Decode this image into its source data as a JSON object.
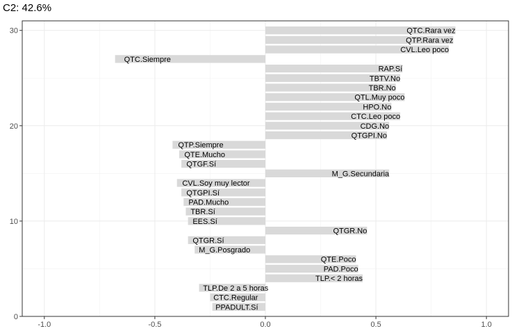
{
  "chart_data": {
    "type": "bar",
    "orientation": "horizontal",
    "title": "C2: 42.6%",
    "xlabel": "",
    "ylabel": "",
    "xlim": [
      -1.1,
      1.1
    ],
    "ylim": [
      0,
      31
    ],
    "x_ticks": [
      -1.0,
      -0.5,
      0.0,
      0.5,
      1.0
    ],
    "x_tick_labels": [
      "-1.0",
      "-0.5",
      "0.0",
      "0.5",
      "1.0"
    ],
    "y_ticks": [
      0,
      10,
      20,
      30
    ],
    "y_tick_labels": [
      "0",
      "10",
      "20",
      "30"
    ],
    "grid": true,
    "bar_color": "#d9d9d9",
    "bars": [
      {
        "position": 30,
        "value": 0.86,
        "label": "QTC.Rara vez"
      },
      {
        "position": 29,
        "value": 0.85,
        "label": "QTP.Rara vez"
      },
      {
        "position": 28,
        "value": 0.83,
        "label": "CVL.Leo poco"
      },
      {
        "position": 27,
        "value": -0.68,
        "label": "QTC.Siempre"
      },
      {
        "position": 26,
        "value": 0.62,
        "label": "RAP.Sí"
      },
      {
        "position": 25,
        "value": 0.61,
        "label": "TBTV.No"
      },
      {
        "position": 24,
        "value": 0.59,
        "label": "TBR.No"
      },
      {
        "position": 23,
        "value": 0.63,
        "label": "QTL.Muy poco"
      },
      {
        "position": 22,
        "value": 0.57,
        "label": "HPO.No"
      },
      {
        "position": 21,
        "value": 0.61,
        "label": "CTC.Leo poco"
      },
      {
        "position": 20,
        "value": 0.56,
        "label": "CDG.No"
      },
      {
        "position": 19,
        "value": 0.55,
        "label": "QTGPI.No"
      },
      {
        "position": 18,
        "value": -0.42,
        "label": "QTP.Siempre"
      },
      {
        "position": 17,
        "value": -0.39,
        "label": "QTE.Mucho"
      },
      {
        "position": 16,
        "value": -0.38,
        "label": "QTGF.Sí"
      },
      {
        "position": 15,
        "value": 0.56,
        "label": "M_G.Secundaria"
      },
      {
        "position": 14,
        "value": -0.4,
        "label": "CVL.Soy muy lector"
      },
      {
        "position": 13,
        "value": -0.38,
        "label": "QTGPI.Sí"
      },
      {
        "position": 12,
        "value": -0.37,
        "label": "PAD.Mucho"
      },
      {
        "position": 11,
        "value": -0.36,
        "label": "TBR.Sí"
      },
      {
        "position": 10,
        "value": -0.35,
        "label": "EES.Sí"
      },
      {
        "position": 9,
        "value": 0.46,
        "label": "QTGR.No"
      },
      {
        "position": 8,
        "value": -0.35,
        "label": "QTGR.Sí"
      },
      {
        "position": 7,
        "value": -0.32,
        "label": "M_G.Posgrado"
      },
      {
        "position": 6,
        "value": 0.41,
        "label": "QTE.Poco"
      },
      {
        "position": 5,
        "value": 0.42,
        "label": "PAD.Poco"
      },
      {
        "position": 4,
        "value": 0.44,
        "label": "TLP.< 2 horas"
      },
      {
        "position": 3,
        "value": -0.3,
        "label": "TLP.De 2 a 5 horas"
      },
      {
        "position": 2,
        "value": -0.25,
        "label": "CTC.Regular"
      },
      {
        "position": 1,
        "value": -0.24,
        "label": "PPADULT.Sí"
      }
    ]
  }
}
